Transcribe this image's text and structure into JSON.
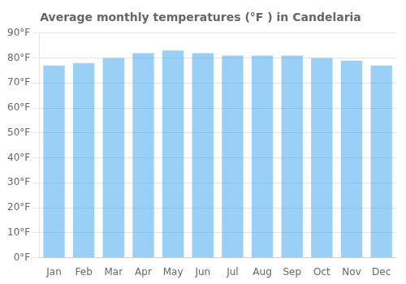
{
  "chart_data": {
    "type": "bar",
    "title": "Average monthly temperatures (°F ) in Candelaria",
    "categories": [
      "Jan",
      "Feb",
      "Mar",
      "Apr",
      "May",
      "Jun",
      "Jul",
      "Aug",
      "Sep",
      "Oct",
      "Nov",
      "Dec"
    ],
    "values": [
      77,
      78,
      80,
      82,
      83,
      82,
      81,
      81,
      81,
      80,
      79,
      77
    ],
    "ylim": [
      0,
      90
    ],
    "yticks": [
      {
        "value": 0,
        "label": "0°F"
      },
      {
        "value": 10,
        "label": "10°F"
      },
      {
        "value": 20,
        "label": "20°F"
      },
      {
        "value": 30,
        "label": "30°F"
      },
      {
        "value": 40,
        "label": "40°F"
      },
      {
        "value": 50,
        "label": "50°F"
      },
      {
        "value": 60,
        "label": "60°F"
      },
      {
        "value": 70,
        "label": "70°F"
      },
      {
        "value": 80,
        "label": "80°F"
      },
      {
        "value": 90,
        "label": "90°F"
      }
    ],
    "grid": true
  }
}
